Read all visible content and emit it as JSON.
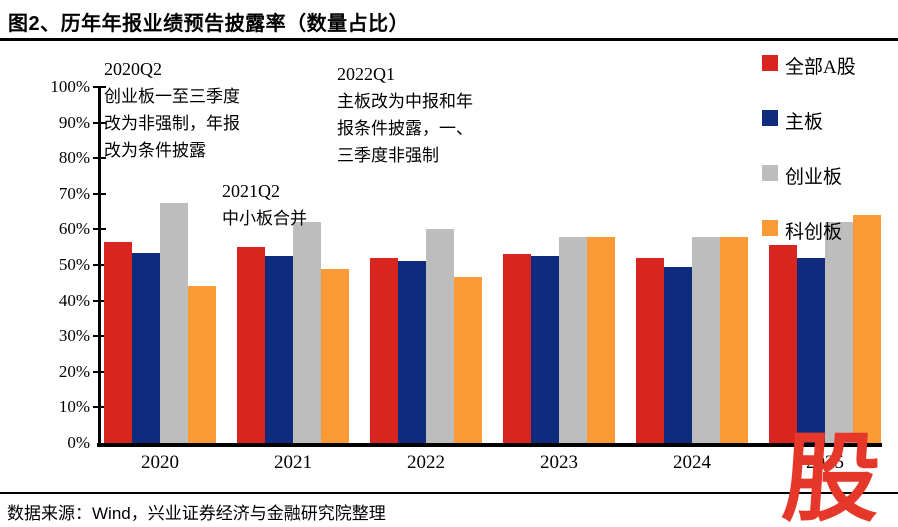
{
  "title": "图2、历年年报业绩预告披露率（数量占比）",
  "source": "数据来源：Wind，兴业证券经济与金融研究院整理",
  "watermark_char": "股",
  "annotations": [
    {
      "heading": "2020Q2",
      "lines": [
        "创业板一至三季度",
        "改为非强制，年报",
        "改为条件披露"
      ]
    },
    {
      "heading": "2021Q2",
      "lines": [
        "中小板合并"
      ]
    },
    {
      "heading": "2022Q1",
      "lines": [
        "主板改为中报和年",
        "报条件披露，一、",
        "三季度非强制"
      ]
    }
  ],
  "colors": {
    "all_a": "#d9251f",
    "main_board": "#0e2b7d",
    "chinext": "#bdbdbd",
    "star": "#fc9a35",
    "watermark": "#e5382a",
    "axis": "#000000"
  },
  "chart_data": {
    "type": "bar",
    "title": "图2、历年年报业绩预告披露率（数量占比）",
    "categories": [
      "2020",
      "2021",
      "2022",
      "2023",
      "2024",
      "2025"
    ],
    "series": [
      {
        "name": "全部A股",
        "color": "#d9251f",
        "values": [
          56.5,
          55,
          52,
          53,
          52,
          55.5
        ]
      },
      {
        "name": "主板",
        "color": "#0e2b7d",
        "values": [
          53.5,
          52.5,
          51,
          52.5,
          49.5,
          52
        ]
      },
      {
        "name": "创业板",
        "color": "#bdbdbd",
        "values": [
          67.5,
          62,
          60,
          58,
          58,
          62
        ]
      },
      {
        "name": "科创板",
        "color": "#fc9a35",
        "values": [
          44,
          49,
          46.5,
          58,
          58,
          64
        ]
      }
    ],
    "xlabel": "",
    "ylabel": "",
    "ylim": [
      0,
      100
    ],
    "ytick_step": 10,
    "y_tick_labels": [
      "0%",
      "10%",
      "20%",
      "30%",
      "40%",
      "50%",
      "60%",
      "70%",
      "80%",
      "90%",
      "100%"
    ],
    "grid": false,
    "legend_position": "right-top-vertical"
  }
}
